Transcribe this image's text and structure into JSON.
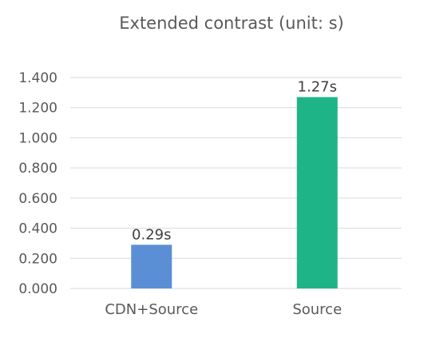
{
  "chart_data": {
    "type": "bar",
    "title": "Extended contrast (unit: s)",
    "categories": [
      "CDN+Source",
      "Source"
    ],
    "values": [
      0.29,
      1.27
    ],
    "data_labels": [
      "0.29s",
      "1.27s"
    ],
    "colors": [
      "#5a8fd6",
      "#1fb487"
    ],
    "ylim": [
      0,
      1.4
    ],
    "yticks": [
      0,
      0.2,
      0.4,
      0.6,
      0.8,
      1.0,
      1.2,
      1.4
    ],
    "ytick_labels": [
      "0.000",
      "0.200",
      "0.400",
      "0.600",
      "0.800",
      "1.000",
      "1.200",
      "1.400"
    ],
    "grid": true,
    "legend": "none",
    "xlabel": "",
    "ylabel": ""
  }
}
